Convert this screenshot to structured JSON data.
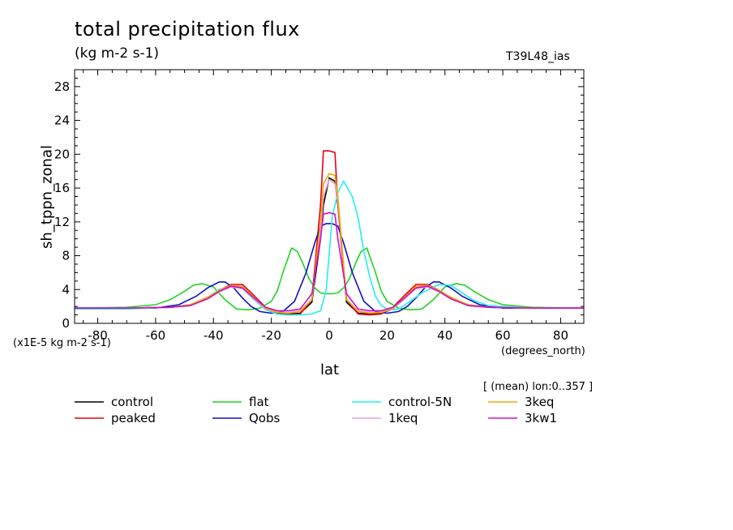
{
  "chart_data": {
    "type": "line",
    "title": "total precipitation flux",
    "units": "(kg m-2 s-1)",
    "run_label": "T39L48_ias",
    "ylabel": "sh_tppn_zonal",
    "yscale_note": "(x1E-5 kg m-2 s-1)",
    "xlabel": "lat",
    "xunits": "(degrees_north)",
    "mean_note": "[ (mean) lon:0..357 ]",
    "xlim": [
      -88,
      88
    ],
    "ylim": [
      0,
      30
    ],
    "xticks": [
      -80,
      -60,
      -40,
      -20,
      0,
      20,
      40,
      60,
      80
    ],
    "yticks": [
      0,
      4,
      8,
      12,
      16,
      20,
      24,
      28
    ],
    "grid": false,
    "legend_position": "bottom",
    "series": [
      {
        "name": "control",
        "color": "#000000",
        "x": [
          -88,
          -70,
          -55,
          -48,
          -42,
          -38,
          -34,
          -30,
          -26,
          -22,
          -18,
          -14,
          -10,
          -6,
          -3,
          -2,
          0,
          2,
          3,
          6,
          10,
          14,
          18,
          22,
          26,
          30,
          34,
          38,
          42,
          48,
          55,
          70,
          88
        ],
        "y": [
          1.8,
          1.8,
          1.9,
          2.2,
          3,
          3.8,
          4.4,
          4.2,
          2.9,
          1.7,
          1.2,
          1.1,
          1.2,
          2.5,
          10,
          14,
          17.2,
          16.8,
          14,
          2.5,
          1.2,
          1.1,
          1.2,
          1.7,
          2.9,
          4.2,
          4.4,
          3.8,
          3,
          2.2,
          1.9,
          1.8,
          1.8
        ]
      },
      {
        "name": "peaked",
        "color": "#e8000f",
        "x": [
          -88,
          -70,
          -55,
          -48,
          -42,
          -38,
          -34,
          -30,
          -26,
          -22,
          -18,
          -14,
          -10,
          -6,
          -3,
          -2,
          0,
          2,
          3,
          6,
          10,
          14,
          18,
          22,
          26,
          30,
          34,
          38,
          42,
          48,
          55,
          70,
          88
        ],
        "y": [
          1.8,
          1.8,
          1.9,
          2.1,
          3,
          3.9,
          4.6,
          4.6,
          3.3,
          1.9,
          1.1,
          1,
          1.1,
          2.8,
          14,
          20.4,
          20.4,
          20.2,
          14,
          2.8,
          1.1,
          1,
          1.1,
          1.9,
          3.3,
          4.6,
          4.6,
          3.9,
          3,
          2.1,
          1.9,
          1.8,
          1.8
        ]
      },
      {
        "name": "flat",
        "color": "#22d422",
        "x": [
          -88,
          -70,
          -60,
          -55,
          -50,
          -47,
          -44,
          -40,
          -36,
          -32,
          -28,
          -24,
          -20,
          -18,
          -16,
          -13,
          -11,
          -9,
          -7,
          -5,
          -3,
          -1,
          1,
          3,
          5,
          7,
          9,
          11,
          13,
          16,
          18,
          20,
          24,
          28,
          32,
          36,
          40,
          44,
          47,
          50,
          55,
          60,
          70,
          88
        ],
        "y": [
          1.8,
          1.9,
          2.2,
          2.8,
          3.8,
          4.5,
          4.7,
          4.3,
          2.8,
          1.7,
          1.6,
          1.8,
          2.6,
          3.8,
          6,
          8.9,
          8.5,
          7,
          5.3,
          4.2,
          3.6,
          3.5,
          3.5,
          3.6,
          4.2,
          5.3,
          7,
          8.5,
          8.9,
          6,
          3.8,
          2.6,
          1.8,
          1.6,
          1.7,
          2.8,
          4.3,
          4.7,
          4.5,
          3.8,
          2.8,
          2.2,
          1.9,
          1.8
        ]
      },
      {
        "name": "Qobs",
        "color": "#1010c8",
        "x": [
          -88,
          -70,
          -60,
          -52,
          -46,
          -42,
          -38,
          -36,
          -33,
          -30,
          -27,
          -24,
          -20,
          -16,
          -12,
          -8,
          -5,
          -3,
          -1,
          1,
          3,
          5,
          8,
          12,
          16,
          20,
          24,
          27,
          30,
          33,
          36,
          38,
          42,
          46,
          52,
          60,
          70,
          88
        ],
        "y": [
          1.8,
          1.8,
          1.8,
          2.2,
          3.2,
          4.2,
          4.9,
          4.9,
          4.2,
          3,
          2,
          1.4,
          1.2,
          1.4,
          2.6,
          6,
          9.5,
          11.5,
          11.8,
          11.8,
          11.5,
          9.5,
          6,
          2.6,
          1.4,
          1.2,
          1.4,
          2,
          3,
          4.2,
          4.9,
          4.9,
          4.2,
          3.2,
          2.2,
          1.8,
          1.8,
          1.8
        ]
      },
      {
        "name": "control-5N",
        "color": "#22f0f0",
        "x": [
          -88,
          -70,
          -55,
          -48,
          -42,
          -38,
          -34,
          -30,
          -26,
          -22,
          -18,
          -14,
          -10,
          -6,
          -3,
          -1,
          1,
          3,
          5,
          8,
          10,
          12,
          14,
          16,
          18,
          20,
          22,
          24,
          28,
          32,
          38,
          42,
          46,
          50,
          55,
          70,
          88
        ],
        "y": [
          1.7,
          1.7,
          1.9,
          2.2,
          3.1,
          4,
          4.4,
          4.1,
          2.8,
          1.6,
          1.1,
          1,
          1,
          1.1,
          1.5,
          4,
          12.5,
          15.5,
          16.8,
          15,
          12.5,
          8.5,
          5.5,
          3.2,
          2.1,
          1.7,
          1.6,
          1.7,
          2.6,
          3.6,
          4.6,
          4.5,
          3.6,
          2.7,
          2.1,
          1.8,
          1.8
        ]
      },
      {
        "name": "1keq",
        "color": "#e8a0e0",
        "x": [
          -88,
          -70,
          -55,
          -48,
          -42,
          -38,
          -34,
          -30,
          -26,
          -22,
          -18,
          -14,
          -10,
          -6,
          -3,
          -2,
          0,
          2,
          3,
          6,
          10,
          14,
          18,
          22,
          26,
          30,
          34,
          38,
          42,
          48,
          55,
          70,
          88
        ],
        "y": [
          1.8,
          1.8,
          1.9,
          2.1,
          2.9,
          3.7,
          4.3,
          4.1,
          2.9,
          1.7,
          1.3,
          1.3,
          1.5,
          2.8,
          11,
          15,
          17,
          16.5,
          14.5,
          2.8,
          1.5,
          1.3,
          1.3,
          1.7,
          2.9,
          4.1,
          4.3,
          3.7,
          2.9,
          2.1,
          1.9,
          1.8,
          1.8
        ]
      },
      {
        "name": "3keq",
        "color": "#f0a800",
        "x": [
          -88,
          -70,
          -55,
          -48,
          -42,
          -38,
          -34,
          -30,
          -26,
          -22,
          -18,
          -14,
          -10,
          -6,
          -3,
          -2,
          0,
          2,
          3,
          6,
          10,
          14,
          18,
          22,
          26,
          30,
          34,
          38,
          42,
          48,
          55,
          70,
          88
        ],
        "y": [
          1.8,
          1.8,
          1.9,
          2.2,
          3.1,
          3.9,
          4.5,
          4.4,
          3.1,
          1.8,
          1.3,
          1.2,
          1.4,
          2.8,
          12,
          16.5,
          17.7,
          17.5,
          15,
          2.8,
          1.4,
          1.2,
          1.3,
          1.8,
          3.1,
          4.4,
          4.5,
          3.9,
          3.1,
          2.2,
          1.9,
          1.8,
          1.8
        ]
      },
      {
        "name": "3kw1",
        "color": "#d010c8",
        "x": [
          -88,
          -70,
          -55,
          -48,
          -42,
          -38,
          -34,
          -30,
          -26,
          -22,
          -18,
          -14,
          -10,
          -6,
          -3,
          -2,
          0,
          2,
          3,
          6,
          10,
          14,
          18,
          22,
          26,
          30,
          34,
          38,
          42,
          48,
          55,
          70,
          88
        ],
        "y": [
          1.8,
          1.8,
          1.9,
          2.1,
          2.9,
          3.8,
          4.4,
          4.2,
          3,
          1.9,
          1.5,
          1.5,
          1.7,
          3.5,
          10,
          12.9,
          13.1,
          12.9,
          10,
          3.5,
          1.7,
          1.5,
          1.5,
          1.9,
          3,
          4.2,
          4.4,
          3.8,
          2.9,
          2.1,
          1.9,
          1.8,
          1.8
        ]
      }
    ]
  }
}
